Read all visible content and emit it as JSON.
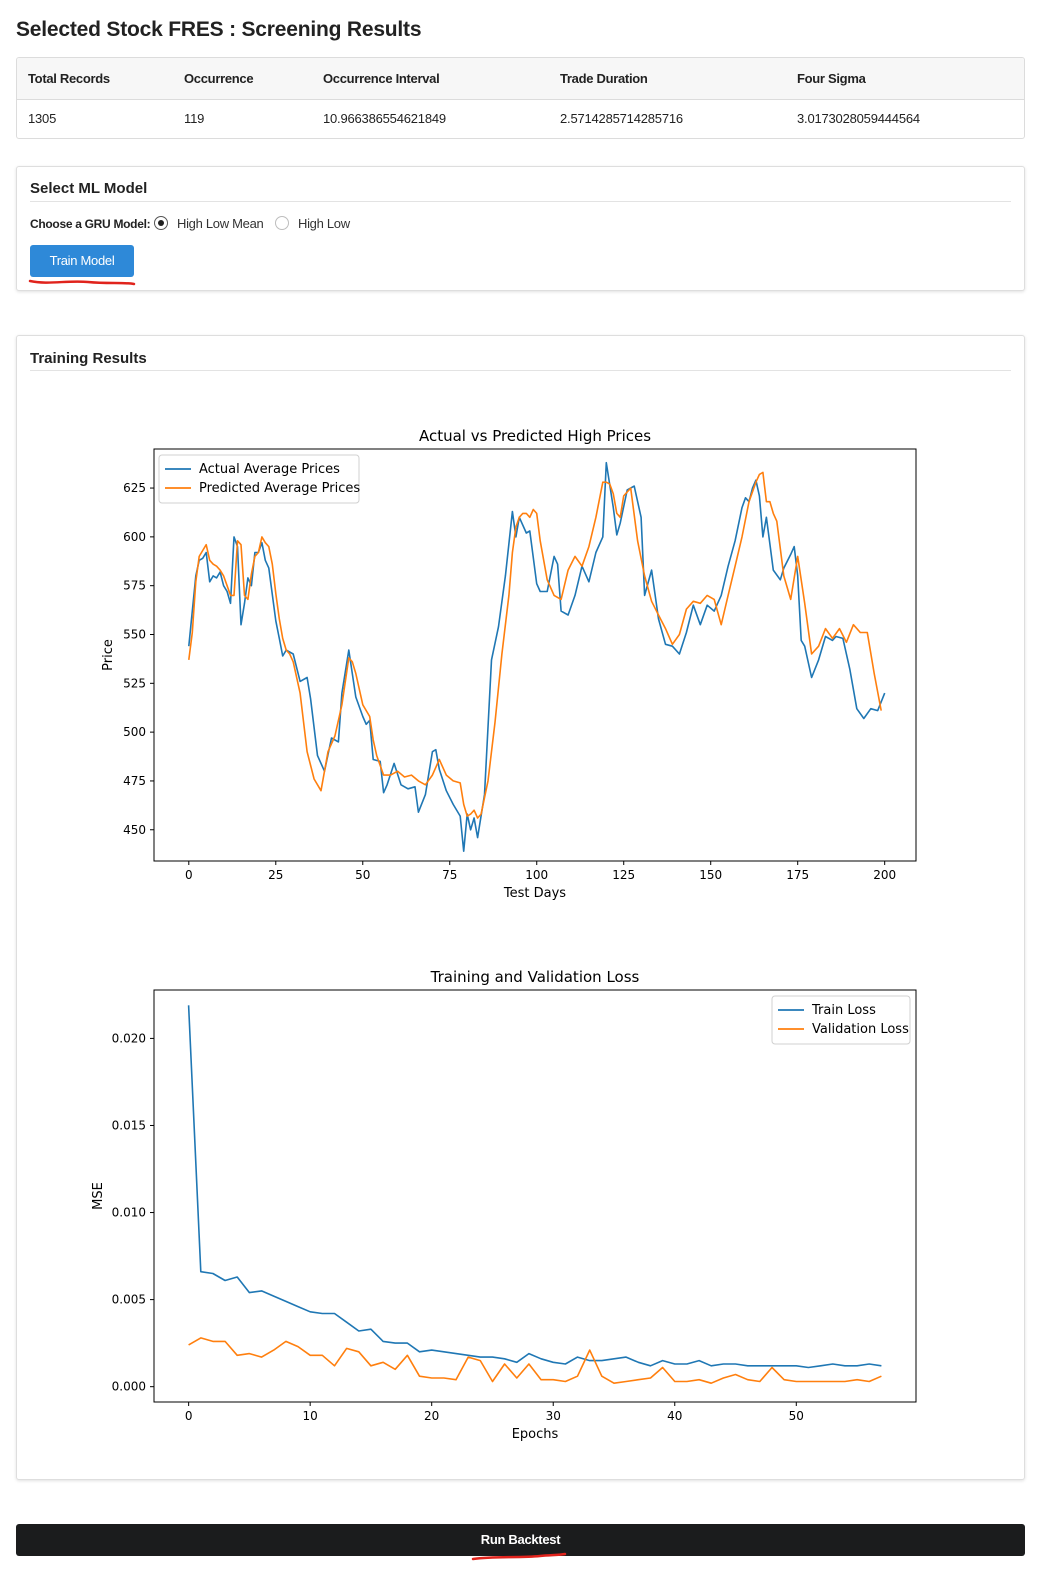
{
  "page": {
    "title": "Selected Stock FRES : Screening Results"
  },
  "stats": {
    "headers": [
      "Total Records",
      "Occurrence",
      "Occurrence Interval",
      "Trade Duration",
      "Four Sigma"
    ],
    "values": [
      "1305",
      "119",
      "10.966386554621849",
      "2.5714285714285716",
      "3.0173028059444564"
    ]
  },
  "model_card": {
    "title": "Select ML Model",
    "choose_label": "Choose a GRU Model:",
    "options": [
      {
        "label": "High Low Mean",
        "checked": true
      },
      {
        "label": "High Low",
        "checked": false
      }
    ],
    "train_button": "Train Model"
  },
  "results_card": {
    "title": "Training Results"
  },
  "backtest_button": "Run Backtest",
  "annotation_color": "#e0231c",
  "chart_data": [
    {
      "type": "line",
      "title": "Actual vs Predicted High Prices",
      "xlabel": "Test Days",
      "ylabel": "Price",
      "xlim": [
        -10,
        209
      ],
      "ylim": [
        434,
        645
      ],
      "xticks": [
        0,
        25,
        50,
        75,
        100,
        125,
        150,
        175,
        200
      ],
      "yticks": [
        450,
        475,
        500,
        525,
        550,
        575,
        600,
        625
      ],
      "legend": "top-left",
      "grid": false,
      "series": [
        {
          "name": "Actual Average Prices",
          "color": "#1f77b4",
          "x": [
            0,
            2,
            3,
            4,
            5,
            6,
            7,
            8,
            9,
            10,
            11,
            12,
            13,
            14,
            15,
            16,
            17,
            18,
            19,
            20,
            21,
            22,
            23,
            25,
            26,
            27,
            28,
            30,
            32,
            34,
            35,
            37,
            39,
            41,
            43,
            44,
            46,
            48,
            50,
            51,
            52,
            53,
            55,
            56,
            57,
            59,
            61,
            63,
            65,
            66,
            68,
            70,
            71,
            72,
            74,
            76,
            78,
            79,
            80,
            81,
            82,
            83,
            85,
            87,
            89,
            91,
            93,
            94,
            95,
            97,
            98,
            100,
            101,
            103,
            105,
            106,
            107,
            109,
            111,
            113,
            115,
            117,
            119,
            120,
            122,
            123,
            124,
            126,
            128,
            130,
            131,
            133,
            135,
            137,
            139,
            141,
            143,
            145,
            147,
            149,
            151,
            153,
            155,
            157,
            159,
            160,
            161,
            162,
            163,
            164,
            165,
            166,
            168,
            170,
            171,
            173,
            174,
            175,
            176,
            177,
            179,
            181,
            183,
            185,
            186,
            188,
            190,
            192,
            194,
            196,
            198,
            200
          ],
          "y": [
            544,
            580,
            588,
            589,
            592,
            577,
            580,
            579,
            582,
            575,
            572,
            566,
            600,
            595,
            555,
            566,
            579,
            575,
            592,
            592,
            597,
            588,
            584,
            557,
            548,
            539,
            542,
            540,
            526,
            528,
            517,
            488,
            480,
            497,
            495,
            520,
            542,
            518,
            508,
            504,
            506,
            486,
            485,
            469,
            473,
            484,
            473,
            471,
            472,
            459,
            468,
            490,
            491,
            481,
            470,
            463,
            457,
            439,
            458,
            450,
            456,
            446,
            468,
            537,
            554,
            580,
            613,
            600,
            610,
            602,
            603,
            576,
            572,
            572,
            590,
            586,
            562,
            560,
            570,
            585,
            577,
            592,
            600,
            638,
            615,
            601,
            607,
            624,
            626,
            610,
            570,
            583,
            558,
            545,
            544,
            540,
            551,
            565,
            555,
            565,
            562,
            570,
            585,
            598,
            615,
            620,
            618,
            625,
            629,
            621,
            600,
            610,
            583,
            578,
            584,
            591,
            595,
            580,
            547,
            544,
            528,
            537,
            549,
            547,
            549,
            548,
            532,
            512,
            507,
            512,
            511,
            520
          ]
        },
        {
          "name": "Predicted Average Prices",
          "color": "#ff7f0e",
          "x": [
            0,
            1,
            2,
            3,
            4,
            5,
            6,
            7,
            8,
            9,
            10,
            11,
            12,
            13,
            14,
            15,
            16,
            17,
            18,
            19,
            20,
            21,
            22,
            23,
            24,
            25,
            26,
            27,
            28,
            29,
            30,
            32,
            34,
            36,
            38,
            40,
            42,
            44,
            46,
            47,
            48,
            50,
            52,
            53,
            54,
            56,
            58,
            60,
            62,
            64,
            66,
            68,
            70,
            72,
            74,
            76,
            78,
            79,
            80,
            81,
            82,
            83,
            84,
            86,
            88,
            90,
            92,
            93,
            94,
            95,
            96,
            97,
            98,
            99,
            100,
            101,
            103,
            105,
            107,
            109,
            111,
            113,
            115,
            117,
            119,
            120,
            121,
            122,
            123,
            124,
            125,
            126,
            127,
            129,
            131,
            133,
            135,
            137,
            139,
            141,
            143,
            145,
            147,
            149,
            151,
            153,
            155,
            157,
            159,
            161,
            163,
            164,
            165,
            166,
            167,
            168,
            169,
            171,
            173,
            175,
            177,
            179,
            181,
            183,
            185,
            187,
            189,
            191,
            193,
            195,
            197,
            199
          ],
          "y": [
            537,
            551,
            577,
            590,
            593,
            596,
            588,
            586,
            585,
            583,
            580,
            575,
            570,
            570,
            598,
            596,
            570,
            568,
            581,
            590,
            592,
            600,
            597,
            595,
            586,
            571,
            558,
            548,
            542,
            540,
            536,
            520,
            490,
            476,
            470,
            490,
            498,
            514,
            538,
            536,
            530,
            514,
            508,
            496,
            488,
            478,
            478,
            480,
            477,
            478,
            475,
            473,
            478,
            486,
            478,
            475,
            474,
            463,
            457,
            458,
            460,
            456,
            458,
            475,
            505,
            540,
            570,
            592,
            605,
            610,
            612,
            612,
            610,
            614,
            612,
            598,
            578,
            570,
            568,
            583,
            590,
            585,
            595,
            610,
            628,
            628,
            627,
            622,
            612,
            610,
            621,
            623,
            625,
            598,
            580,
            567,
            560,
            553,
            545,
            550,
            563,
            567,
            566,
            570,
            568,
            555,
            570,
            585,
            600,
            618,
            628,
            632,
            633,
            618,
            618,
            612,
            608,
            580,
            568,
            590,
            566,
            540,
            544,
            553,
            548,
            553,
            546,
            555,
            551,
            551,
            530,
            511
          ]
        }
      ]
    },
    {
      "type": "line",
      "title": "Training and Validation Loss",
      "xlabel": "Epochs",
      "ylabel": "MSE",
      "xlim": [
        -2.85,
        59.85
      ],
      "ylim": [
        -0.00088,
        0.02278
      ],
      "xticks": [
        0,
        10,
        20,
        30,
        40,
        50
      ],
      "yticks": [
        0.0,
        0.005,
        0.01,
        0.015,
        0.02
      ],
      "ytick_labels": [
        "0.000",
        "0.005",
        "0.010",
        "0.015",
        "0.020"
      ],
      "legend": "top-right",
      "grid": false,
      "series": [
        {
          "name": "Train Loss",
          "color": "#1f77b4",
          "x": [
            0,
            1,
            2,
            3,
            4,
            5,
            6,
            7,
            8,
            9,
            10,
            11,
            12,
            13,
            14,
            15,
            16,
            17,
            18,
            19,
            20,
            21,
            22,
            23,
            24,
            25,
            26,
            27,
            28,
            29,
            30,
            31,
            32,
            33,
            34,
            35,
            36,
            37,
            38,
            39,
            40,
            41,
            42,
            43,
            44,
            45,
            46,
            47,
            48,
            49,
            50,
            51,
            52,
            53,
            54,
            55,
            56,
            57
          ],
          "y": [
            0.0219,
            0.0066,
            0.0065,
            0.0061,
            0.0063,
            0.0054,
            0.0055,
            0.0052,
            0.0049,
            0.0046,
            0.0043,
            0.0042,
            0.0042,
            0.0037,
            0.0032,
            0.0033,
            0.0026,
            0.0025,
            0.0025,
            0.002,
            0.0021,
            0.002,
            0.0019,
            0.0018,
            0.0017,
            0.0017,
            0.0016,
            0.0014,
            0.0019,
            0.0016,
            0.0014,
            0.0013,
            0.0017,
            0.0015,
            0.0015,
            0.0016,
            0.0017,
            0.0014,
            0.0012,
            0.0015,
            0.0013,
            0.0013,
            0.0015,
            0.0012,
            0.0013,
            0.0013,
            0.0012,
            0.0012,
            0.0012,
            0.0012,
            0.0012,
            0.0011,
            0.0012,
            0.0013,
            0.0012,
            0.0012,
            0.0013,
            0.0012
          ]
        },
        {
          "name": "Validation Loss",
          "color": "#ff7f0e",
          "x": [
            0,
            1,
            2,
            3,
            4,
            5,
            6,
            7,
            8,
            9,
            10,
            11,
            12,
            13,
            14,
            15,
            16,
            17,
            18,
            19,
            20,
            21,
            22,
            23,
            24,
            25,
            26,
            27,
            28,
            29,
            30,
            31,
            32,
            33,
            34,
            35,
            36,
            37,
            38,
            39,
            40,
            41,
            42,
            43,
            44,
            45,
            46,
            47,
            48,
            49,
            50,
            51,
            52,
            53,
            54,
            55,
            56,
            57
          ],
          "y": [
            0.0024,
            0.0028,
            0.0026,
            0.0026,
            0.0018,
            0.0019,
            0.0017,
            0.0021,
            0.0026,
            0.0023,
            0.0018,
            0.0018,
            0.0012,
            0.0022,
            0.002,
            0.0012,
            0.0014,
            0.001,
            0.0018,
            0.0006,
            0.0005,
            0.0005,
            0.0004,
            0.0017,
            0.0015,
            0.0003,
            0.0013,
            0.0005,
            0.0013,
            0.0004,
            0.0004,
            0.0003,
            0.0006,
            0.0021,
            0.0006,
            0.0002,
            0.0003,
            0.0004,
            0.0005,
            0.0011,
            0.0003,
            0.0003,
            0.0004,
            0.0002,
            0.0005,
            0.0007,
            0.0004,
            0.0003,
            0.0011,
            0.0004,
            0.0003,
            0.0003,
            0.0003,
            0.0003,
            0.0003,
            0.0004,
            0.0003,
            0.0006
          ]
        }
      ]
    }
  ]
}
